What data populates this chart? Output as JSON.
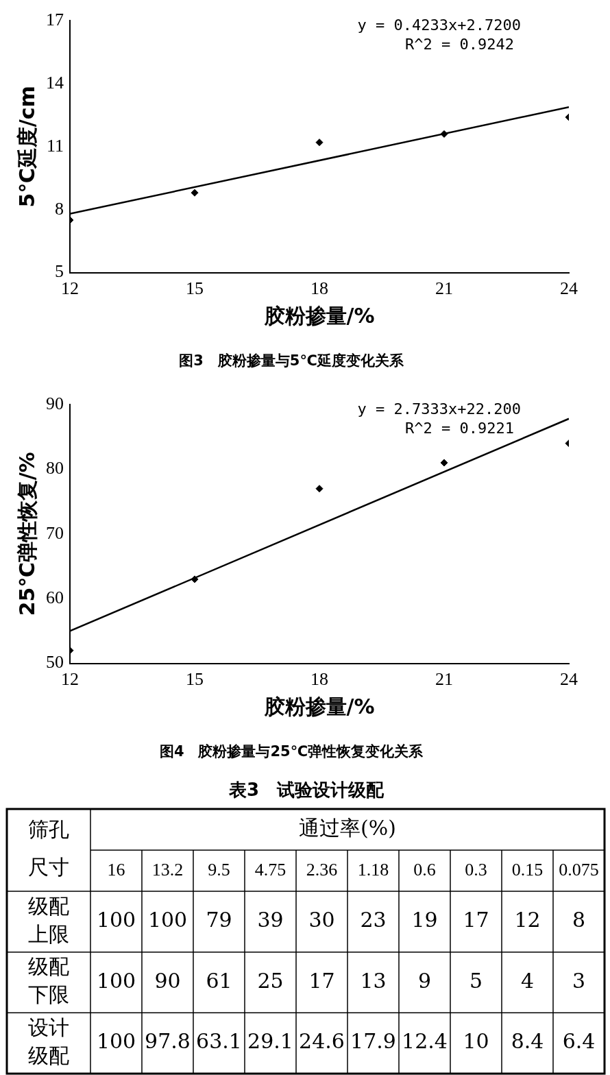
{
  "chart_data": [
    {
      "type": "scatter",
      "title": "图3　胶粉掺量与5℃延度变化关系",
      "xlabel": "胶粉掺量/%",
      "ylabel": "5℃延度/cm",
      "xlim": [
        12,
        24
      ],
      "xticks": [
        12,
        15,
        18,
        21,
        24
      ],
      "ylim": [
        5,
        17
      ],
      "yticks": [
        5,
        8,
        11,
        14,
        17
      ],
      "grid": false,
      "legend": false,
      "annotations": [
        "y = 0.4233x+2.7200",
        "R^2 = 0.9242"
      ],
      "series": [
        {
          "type": "scatter",
          "color": "#000000",
          "marker": "diamond",
          "x": [
            12,
            15,
            18,
            21,
            24
          ],
          "values": [
            7.5,
            8.8,
            11.2,
            11.6,
            12.4
          ]
        },
        {
          "type": "line",
          "color": "#000000",
          "line_style": "solid",
          "x": [
            12,
            24
          ],
          "values": [
            7.8,
            12.88
          ]
        }
      ]
    },
    {
      "type": "scatter",
      "title": "图4　胶粉掺量与25℃弹性恢复变化关系",
      "xlabel": "胶粉掺量/%",
      "ylabel": "25℃弹性恢复/%",
      "xlim": [
        12,
        24
      ],
      "xticks": [
        12,
        15,
        18,
        21,
        24
      ],
      "ylim": [
        50,
        90
      ],
      "yticks": [
        50,
        60,
        70,
        80,
        90
      ],
      "grid": false,
      "legend": false,
      "annotations": [
        "y = 2.7333x+22.200",
        "R^2 = 0.9221"
      ],
      "series": [
        {
          "type": "scatter",
          "color": "#000000",
          "marker": "diamond",
          "x": [
            12,
            15,
            18,
            21,
            24
          ],
          "values": [
            52,
            63,
            77,
            81,
            84
          ]
        },
        {
          "type": "line",
          "color": "#000000",
          "line_style": "solid",
          "x": [
            12,
            24
          ],
          "values": [
            55,
            87.8
          ]
        }
      ]
    },
    {
      "type": "heatmap",
      "title": "表3　试验设计级配",
      "xlabel": "通过率(%)",
      "ylabel": "筛孔尺寸",
      "data_labels": true,
      "categories": [
        "16",
        "13.2",
        "9.5",
        "4.75",
        "2.36",
        "1.18",
        "0.6",
        "0.3",
        "0.15",
        "0.075"
      ],
      "y_categories": [
        "级配上限",
        "级配下限",
        "设计级配"
      ],
      "cells": [
        [
          100,
          100,
          79,
          39,
          30,
          23,
          19,
          17,
          12,
          8
        ],
        [
          100,
          90,
          61,
          25,
          17,
          13,
          9,
          5,
          4,
          3
        ],
        [
          100,
          97.8,
          63.1,
          29.1,
          24.6,
          17.9,
          12.4,
          10,
          8.4,
          6.4
        ]
      ]
    }
  ]
}
